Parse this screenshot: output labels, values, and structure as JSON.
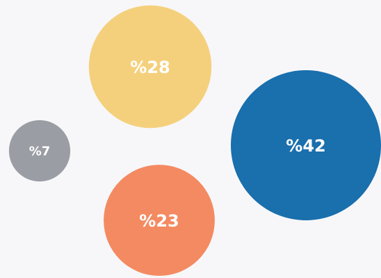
{
  "chart_data": {
    "type": "bubble",
    "title": "",
    "unit_prefix": "%",
    "series": [
      {
        "label": "%42",
        "value": 42,
        "color": "#1a6fad"
      },
      {
        "label": "%28",
        "value": 28,
        "color": "#f5d07c"
      },
      {
        "label": "%23",
        "value": 23,
        "color": "#f48a61"
      },
      {
        "label": "%7",
        "value": 7,
        "color": "#9a9da3"
      }
    ]
  }
}
